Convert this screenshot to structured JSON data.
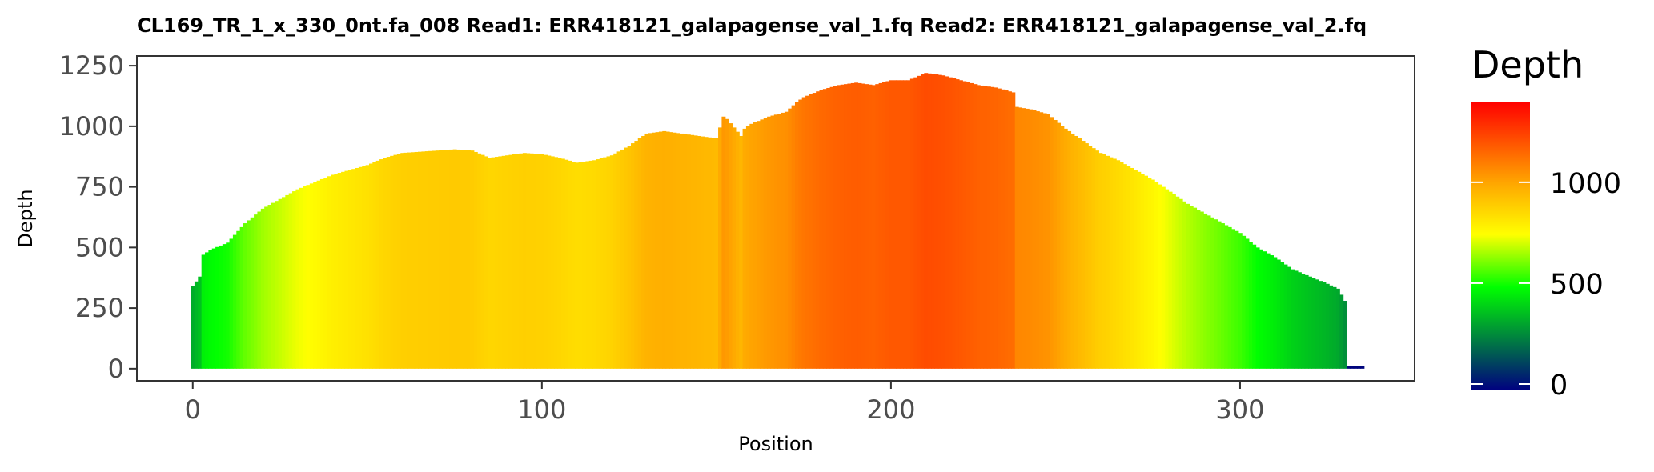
{
  "chart_data": {
    "type": "area",
    "title": "CL169_TR_1_x_330_0nt.fa_008   Read1: ERR418121_galapagense_val_1.fq   Read2: ERR418121_galapagense_val_2.fq",
    "xlabel": "Position",
    "ylabel": "Depth",
    "xlim": [
      -16,
      350
    ],
    "ylim": [
      -50,
      1290
    ],
    "x_ticks": [
      0,
      100,
      200,
      300
    ],
    "y_ticks": [
      0,
      250,
      500,
      750,
      1000,
      1250
    ],
    "x_tick_labels": [
      "0",
      "100",
      "200",
      "300"
    ],
    "y_tick_labels": [
      "0",
      "250",
      "500",
      "750",
      "1000",
      "1250"
    ],
    "grid": false,
    "fill": "colored by depth",
    "legend": {
      "title": "Depth",
      "position": "right",
      "min": 0,
      "max": 1400,
      "ticks": [
        0,
        500,
        1000
      ],
      "tick_labels": [
        "0",
        "500",
        "1000"
      ],
      "colors": [
        "#000080",
        "#00FF00",
        "#FFFF00",
        "#FFA500",
        "#FF0000"
      ]
    },
    "x": [
      0,
      2,
      3,
      5,
      10,
      15,
      20,
      25,
      30,
      35,
      40,
      45,
      50,
      55,
      60,
      65,
      70,
      75,
      80,
      85,
      90,
      95,
      100,
      105,
      110,
      115,
      120,
      125,
      130,
      135,
      140,
      145,
      150,
      152,
      153,
      157,
      158,
      160,
      165,
      170,
      173,
      175,
      180,
      185,
      190,
      195,
      200,
      205,
      210,
      215,
      220,
      225,
      230,
      235,
      236,
      240,
      245,
      250,
      255,
      260,
      265,
      270,
      275,
      280,
      285,
      290,
      295,
      300,
      305,
      310,
      315,
      320,
      325,
      328,
      330,
      331,
      335
    ],
    "values": [
      340,
      380,
      470,
      490,
      520,
      600,
      660,
      700,
      740,
      770,
      800,
      820,
      840,
      870,
      890,
      895,
      900,
      905,
      900,
      870,
      880,
      890,
      885,
      870,
      850,
      860,
      880,
      920,
      970,
      980,
      970,
      960,
      950,
      1040,
      1030,
      960,
      990,
      1010,
      1040,
      1060,
      1100,
      1120,
      1150,
      1170,
      1180,
      1170,
      1190,
      1190,
      1220,
      1210,
      1190,
      1170,
      1160,
      1140,
      1080,
      1070,
      1050,
      990,
      940,
      890,
      860,
      820,
      780,
      730,
      680,
      640,
      600,
      560,
      500,
      460,
      410,
      380,
      350,
      330,
      280,
      10,
      10
    ]
  }
}
